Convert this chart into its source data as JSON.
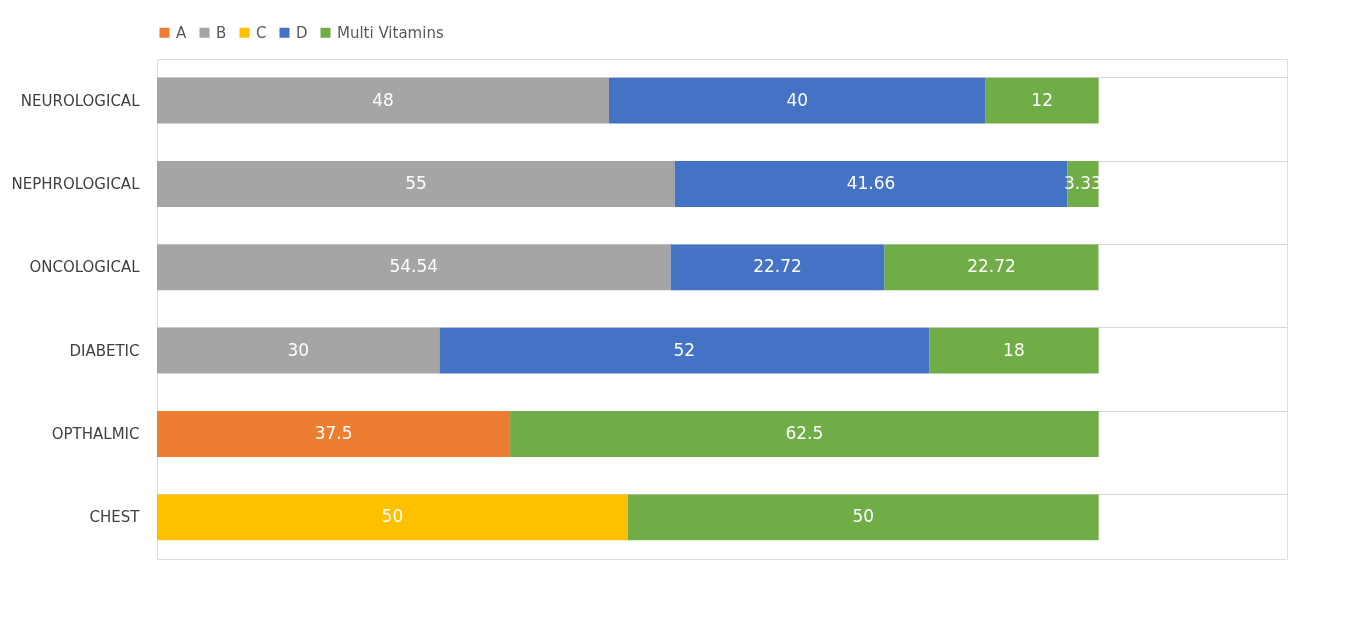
{
  "chart_data": {
    "type": "bar",
    "orientation": "horizontal",
    "stacked": true,
    "categories": [
      "NEUROLOGICAL",
      "NEPHROLOGICAL",
      "ONCOLOGICAL",
      "DIABETIC",
      "OPTHALMIC",
      "CHEST"
    ],
    "series": [
      {
        "name": "A",
        "color": "#ed7d31",
        "values": [
          null,
          null,
          null,
          null,
          37.5,
          null
        ]
      },
      {
        "name": "B",
        "color": "#a5a5a5",
        "values": [
          48,
          55,
          54.54,
          30,
          null,
          null
        ]
      },
      {
        "name": "C",
        "color": "#ffc000",
        "values": [
          null,
          null,
          null,
          null,
          null,
          50
        ]
      },
      {
        "name": "D",
        "color": "#4472c4",
        "values": [
          40,
          41.66,
          22.72,
          52,
          null,
          null
        ]
      },
      {
        "name": "Multi Vitamins",
        "color": "#70ad47",
        "values": [
          12,
          3.33,
          22.72,
          18,
          62.5,
          50
        ]
      }
    ],
    "xlim": [
      0,
      120
    ],
    "data_labels": true,
    "legend": "top",
    "grid": "y",
    "tick_labels": "y"
  }
}
